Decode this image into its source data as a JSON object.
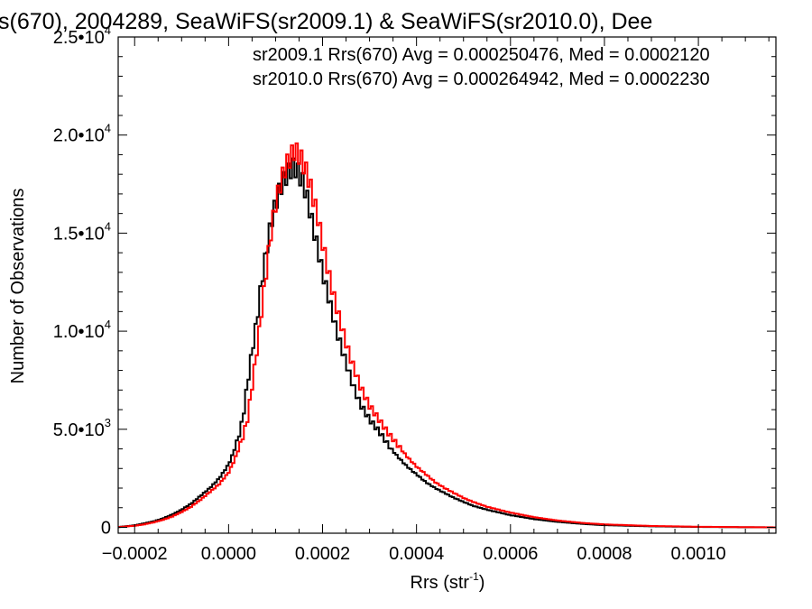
{
  "chart_data": {
    "type": "line",
    "title": "s(670), 2004289, SeaWiFS(sr2009.1) & SeaWiFS(sr2010.0), Dee",
    "xlabel": "Rrs (str",
    "xlabel_sup": "-1",
    "xlabel_end": ")",
    "ylabel": "Number of Observations",
    "xlim": [
      -0.000235,
      0.001165
    ],
    "ylim": [
      -300,
      25000
    ],
    "grid": false,
    "step_histogram": true,
    "x_ticks": [
      {
        "value": -0.0002,
        "label": "-0.0002"
      },
      {
        "value": 0.0,
        "label": "0.0000"
      },
      {
        "value": 0.0002,
        "label": "0.0002"
      },
      {
        "value": 0.0004,
        "label": "0.0004"
      },
      {
        "value": 0.0006,
        "label": "0.0006"
      },
      {
        "value": 0.0008,
        "label": "0.0008"
      },
      {
        "value": 0.001,
        "label": "0.0010"
      }
    ],
    "y_ticks": [
      {
        "value": 0,
        "mant": "0",
        "exp": ""
      },
      {
        "value": 5000,
        "mant": "5.0•10",
        "exp": "3"
      },
      {
        "value": 10000,
        "mant": "1.0•10",
        "exp": "4"
      },
      {
        "value": 15000,
        "mant": "1.5•10",
        "exp": "4"
      },
      {
        "value": 20000,
        "mant": "2.0•10",
        "exp": "4"
      },
      {
        "value": 25000,
        "mant": "2.5•10",
        "exp": "4"
      }
    ],
    "annotations": [
      {
        "text": "sr2009.1 Rrs(670) Avg = 0.000250476, Med = 0.0002120",
        "color": "#000000"
      },
      {
        "text": "sr2010.0 Rrs(670) Avg = 0.000264942, Med = 0.0002230",
        "color": "#ff0000"
      }
    ],
    "series": [
      {
        "color": "#000000",
        "x": [
          -0.00024,
          -0.00022,
          -0.0002,
          -0.00018,
          -0.00016,
          -0.00014,
          -0.00012,
          -0.0001,
          -8e-05,
          -6e-05,
          -4e-05,
          -2e-05,
          0.0,
          1e-05,
          2e-05,
          3e-05,
          4e-05,
          5e-05,
          6e-05,
          7e-05,
          8e-05,
          9e-05,
          0.0001,
          0.00011,
          0.00012,
          0.00013,
          0.00014,
          0.00015,
          0.00016,
          0.00017,
          0.00018,
          0.00019,
          0.0002,
          0.00021,
          0.00022,
          0.00023,
          0.00024,
          0.00025,
          0.00026,
          0.00027,
          0.00028,
          0.0003,
          0.00032,
          0.00034,
          0.00036,
          0.00038,
          0.0004,
          0.00042,
          0.00044,
          0.00046,
          0.00048,
          0.0005,
          0.00052,
          0.00055,
          0.0006,
          0.00065,
          0.0007,
          0.00075,
          0.0008,
          0.0009,
          0.001,
          0.0011,
          0.00117
        ],
        "y": [
          0,
          50,
          100,
          200,
          300,
          450,
          650,
          900,
          1200,
          1600,
          2000,
          2500,
          3200,
          3800,
          4500,
          5500,
          7300,
          9000,
          10500,
          12500,
          14000,
          15500,
          16500,
          17300,
          17800,
          18200,
          18400,
          18000,
          17500,
          16500,
          15300,
          14200,
          13000,
          12000,
          11000,
          10000,
          9200,
          8400,
          7600,
          6900,
          6300,
          5500,
          4900,
          4200,
          3600,
          3100,
          2700,
          2300,
          2000,
          1750,
          1500,
          1300,
          1100,
          900,
          620,
          420,
          280,
          180,
          110,
          50,
          20,
          5,
          0
        ]
      },
      {
        "color": "#ff0000",
        "x": [
          -0.00024,
          -0.00022,
          -0.0002,
          -0.00018,
          -0.00016,
          -0.00014,
          -0.00012,
          -0.0001,
          -8e-05,
          -6e-05,
          -4e-05,
          -2e-05,
          0.0,
          1e-05,
          2e-05,
          3e-05,
          4e-05,
          5e-05,
          6e-05,
          7e-05,
          8e-05,
          9e-05,
          0.0001,
          0.00011,
          0.00012,
          0.00013,
          0.00014,
          0.00015,
          0.00016,
          0.00017,
          0.00018,
          0.00019,
          0.0002,
          0.00021,
          0.00022,
          0.00023,
          0.00024,
          0.00025,
          0.00026,
          0.00027,
          0.00028,
          0.0003,
          0.00032,
          0.00034,
          0.00036,
          0.00038,
          0.0004,
          0.00042,
          0.00044,
          0.00046,
          0.00048,
          0.0005,
          0.00052,
          0.00055,
          0.0006,
          0.00065,
          0.0007,
          0.00075,
          0.0008,
          0.0009,
          0.001,
          0.0011,
          0.00117
        ],
        "y": [
          0,
          40,
          80,
          150,
          250,
          380,
          550,
          780,
          1050,
          1400,
          1800,
          2200,
          2800,
          3300,
          3900,
          4600,
          5500,
          7200,
          9000,
          11000,
          13000,
          15000,
          16500,
          17500,
          18300,
          18800,
          19200,
          19000,
          18500,
          17800,
          16800,
          15800,
          14500,
          13300,
          12200,
          11200,
          10300,
          9400,
          8600,
          7900,
          7200,
          6200,
          5500,
          4800,
          4200,
          3600,
          3100,
          2700,
          2300,
          2000,
          1750,
          1500,
          1300,
          1050,
          750,
          520,
          350,
          230,
          150,
          70,
          30,
          10,
          0
        ]
      }
    ]
  }
}
